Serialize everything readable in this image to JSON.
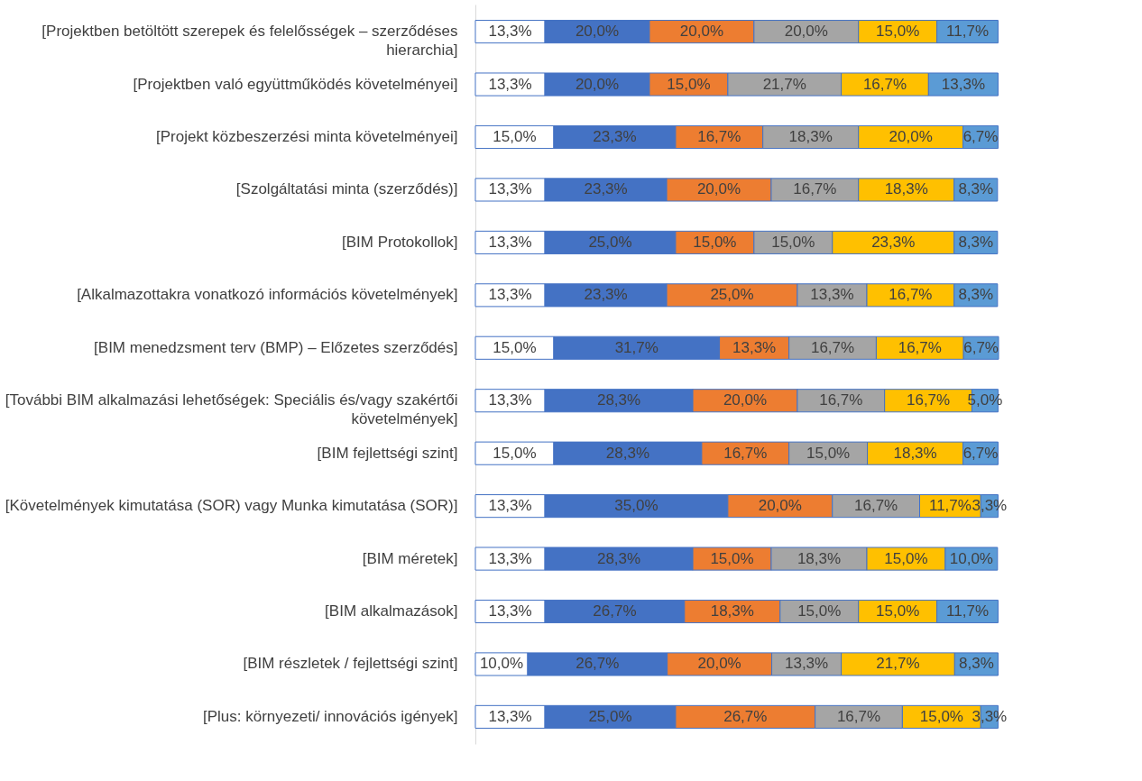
{
  "chart_data": {
    "type": "bar",
    "orientation": "horizontal",
    "stacked": true,
    "xlim": [
      0,
      100.1
    ],
    "tick_labels": "y",
    "categories": [
      "[Projektben betöltött szerepek és felelősségek – szerződéses hierarchia]",
      "[Projektben való együttműködés követelményei]",
      "[Projekt közbeszerzési minta követelményei]",
      "[Szolgáltatási minta (szerződés)]",
      "[BIM Protokollok]",
      "[Alkalmazottakra vonatkozó információs követelmények]",
      "[BIM menedzsment terv (BMP) – Előzetes szerződés]",
      "[További BIM alkalmazási lehetőségek: Speciális és/vagy szakértői követelmények]",
      "[BIM fejlettségi szint]",
      "[Követelmények kimutatása (SOR) vagy Munka kimutatása (SOR)]",
      "[BIM méretek]",
      "[BIM alkalmazások]",
      "[BIM részletek / fejlettségi szint]",
      "[Plus: környezeti/ innovációs igények]"
    ],
    "series": [
      {
        "color": "#ffffff",
        "values": [
          13.3,
          13.3,
          15.0,
          13.3,
          13.3,
          13.3,
          15.0,
          13.3,
          15.0,
          13.3,
          13.3,
          13.3,
          10.0,
          13.3
        ],
        "value_labels": [
          "13,3%",
          "13,3%",
          "15,0%",
          "13,3%",
          "13,3%",
          "13,3%",
          "15,0%",
          "13,3%",
          "15,0%",
          "13,3%",
          "13,3%",
          "13,3%",
          "10,0%",
          "13,3%"
        ]
      },
      {
        "color": "#4472c4",
        "values": [
          20.0,
          20.0,
          23.3,
          23.3,
          25.0,
          23.3,
          31.7,
          28.3,
          28.3,
          35.0,
          28.3,
          26.7,
          26.7,
          25.0
        ],
        "value_labels": [
          "20,0%",
          "20,0%",
          "23,3%",
          "23,3%",
          "25,0%",
          "23,3%",
          "31,7%",
          "28,3%",
          "28,3%",
          "35,0%",
          "28,3%",
          "26,7%",
          "26,7%",
          "25,0%"
        ]
      },
      {
        "color": "#ed7d31",
        "values": [
          20.0,
          15.0,
          16.7,
          20.0,
          15.0,
          25.0,
          13.3,
          20.0,
          16.7,
          20.0,
          15.0,
          18.3,
          20.0,
          26.7
        ],
        "value_labels": [
          "20,0%",
          "15,0%",
          "16,7%",
          "20,0%",
          "15,0%",
          "25,0%",
          "13,3%",
          "20,0%",
          "16,7%",
          "20,0%",
          "15,0%",
          "18,3%",
          "20,0%",
          "26,7%"
        ]
      },
      {
        "color": "#a5a5a5",
        "values": [
          20.0,
          21.7,
          18.3,
          16.7,
          15.0,
          13.3,
          16.7,
          16.7,
          15.0,
          16.7,
          18.3,
          15.0,
          13.3,
          16.7
        ],
        "value_labels": [
          "20,0%",
          "21,7%",
          "18,3%",
          "16,7%",
          "15,0%",
          "13,3%",
          "16,7%",
          "16,7%",
          "15,0%",
          "16,7%",
          "18,3%",
          "15,0%",
          "13,3%",
          "16,7%"
        ]
      },
      {
        "color": "#ffc000",
        "values": [
          15.0,
          16.7,
          20.0,
          18.3,
          23.3,
          16.7,
          16.7,
          16.7,
          18.3,
          11.7,
          15.0,
          15.0,
          21.7,
          15.0
        ],
        "value_labels": [
          "15,0%",
          "16,7%",
          "20,0%",
          "18,3%",
          "23,3%",
          "16,7%",
          "16,7%",
          "16,7%",
          "18,3%",
          "11,7%",
          "15,0%",
          "15,0%",
          "21,7%",
          "15,0%"
        ]
      },
      {
        "color": "#5b9bd5",
        "values": [
          11.7,
          13.3,
          6.7,
          8.3,
          8.3,
          8.3,
          6.7,
          5.0,
          6.7,
          3.3,
          10.0,
          11.7,
          8.3,
          3.3
        ],
        "value_labels": [
          "11,7%",
          "13,3%",
          "6,7%",
          "8,3%",
          "8,3%",
          "8,3%",
          "6,7%",
          "5,0%",
          "6,7%",
          "3,3%",
          "10,0%",
          "11,7%",
          "8,3%",
          "3,3%"
        ]
      }
    ]
  }
}
